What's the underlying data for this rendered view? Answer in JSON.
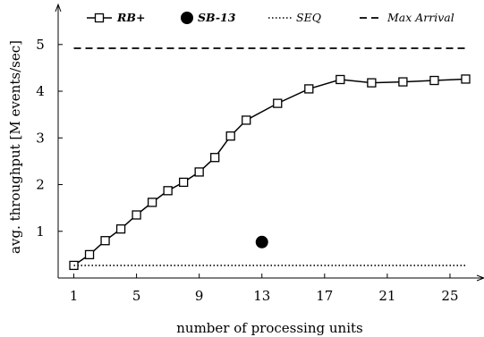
{
  "chart_data": {
    "type": "line",
    "xlabel": "number of processing units",
    "ylabel": "avg. throughput [M events/sec]",
    "xlim": [
      0,
      27
    ],
    "ylim": [
      0,
      5.8
    ],
    "xticks": [
      1,
      5,
      9,
      13,
      17,
      21,
      25
    ],
    "yticks": [
      1,
      2,
      3,
      4,
      5
    ],
    "legend_position": "top",
    "series": [
      {
        "name": "RB+",
        "style": "solid line with open square markers",
        "color": "#000000",
        "x": [
          1,
          2,
          3,
          4,
          5,
          6,
          7,
          8,
          9,
          10,
          11,
          12,
          14,
          16,
          18,
          20,
          22,
          24,
          26
        ],
        "y": [
          0.27,
          0.5,
          0.8,
          1.05,
          1.35,
          1.62,
          1.87,
          2.05,
          2.27,
          2.58,
          3.04,
          3.38,
          3.74,
          4.05,
          4.25,
          4.18,
          4.2,
          4.23,
          4.26
        ]
      },
      {
        "name": "SB-13",
        "style": "filled circle marker",
        "color": "#000000",
        "x": [
          13
        ],
        "y": [
          0.77
        ]
      },
      {
        "name": "SEQ",
        "style": "dotted horizontal line",
        "color": "#000000",
        "y": 0.27
      },
      {
        "name": "Max Arrival",
        "style": "dashed horizontal line",
        "color": "#000000",
        "y": 4.92
      }
    ]
  }
}
